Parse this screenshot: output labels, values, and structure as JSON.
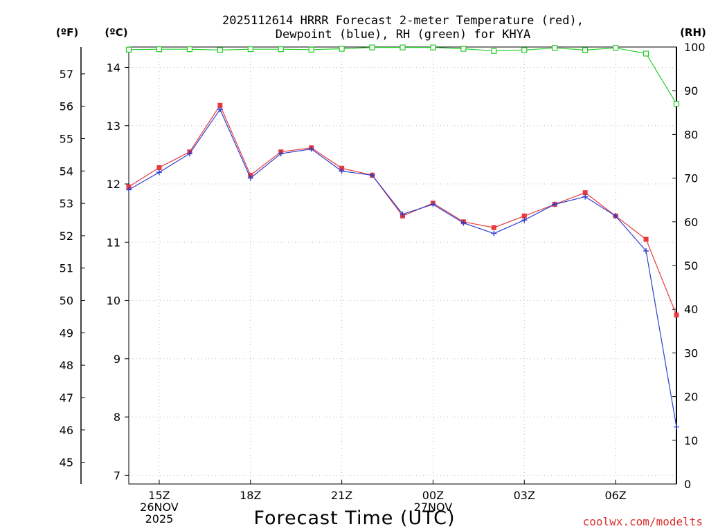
{
  "chart_data": {
    "type": "line",
    "title": [
      "2025112614 HRRR Forecast 2-meter Temperature (red),",
      "Dewpoint (blue), RH (green) for KHYA"
    ],
    "units": {
      "fahrenheit": "(ºF)",
      "celsius": "(ºC)",
      "rh": "(RH)"
    },
    "xlabel": "Forecast Time (UTC)",
    "credit": "coolwx.com/modelts",
    "colors": {
      "temperature": "#e8393d",
      "dewpoint": "#2b3fd0",
      "rh": "#22cc22",
      "grid": "#bbbbbb"
    },
    "x_hours": [
      14,
      15,
      16,
      17,
      18,
      19,
      20,
      21,
      22,
      23,
      24,
      25,
      26,
      27,
      28,
      29,
      30,
      31,
      32
    ],
    "x_ticks": [
      {
        "hour": 15,
        "lines": [
          "15Z",
          "26NOV",
          "2025"
        ]
      },
      {
        "hour": 18,
        "lines": [
          "18Z"
        ]
      },
      {
        "hour": 21,
        "lines": [
          "21Z"
        ]
      },
      {
        "hour": 24,
        "lines": [
          "00Z",
          "27NOV"
        ]
      },
      {
        "hour": 27,
        "lines": [
          "03Z"
        ]
      },
      {
        "hour": 30,
        "lines": [
          "06Z"
        ]
      }
    ],
    "xlim": [
      14,
      32
    ],
    "celsius_axis": {
      "ylim": [
        6.85,
        14.35
      ],
      "ticks": [
        7,
        8,
        9,
        10,
        11,
        12,
        13,
        14
      ]
    },
    "fahrenheit_axis": {
      "ticks": [
        45,
        46,
        47,
        48,
        49,
        50,
        51,
        52,
        53,
        54,
        55,
        56,
        57
      ]
    },
    "rh_axis": {
      "ylim": [
        0,
        100
      ],
      "ticks": [
        0,
        10,
        20,
        30,
        40,
        50,
        60,
        70,
        80,
        90,
        100
      ]
    },
    "series": [
      {
        "name": "Temperature",
        "axis": "celsius",
        "marker": "square",
        "values": [
          11.95,
          12.28,
          12.55,
          13.35,
          12.15,
          12.55,
          12.62,
          12.27,
          12.15,
          11.45,
          11.67,
          11.35,
          11.25,
          11.45,
          11.65,
          11.85,
          11.45,
          11.05,
          9.75
        ]
      },
      {
        "name": "Dewpoint",
        "axis": "celsius",
        "marker": "plus",
        "values": [
          11.9,
          12.2,
          12.52,
          13.28,
          12.1,
          12.52,
          12.6,
          12.22,
          12.15,
          11.48,
          11.65,
          11.33,
          11.15,
          11.38,
          11.65,
          11.78,
          11.45,
          10.85,
          7.83
        ]
      },
      {
        "name": "RH",
        "axis": "rh",
        "marker": "open-square",
        "values": [
          99.4,
          99.5,
          99.5,
          99.3,
          99.5,
          99.5,
          99.4,
          99.6,
          99.9,
          99.9,
          99.9,
          99.6,
          99.1,
          99.3,
          99.8,
          99.3,
          99.8,
          98.5,
          87.0
        ]
      }
    ]
  }
}
